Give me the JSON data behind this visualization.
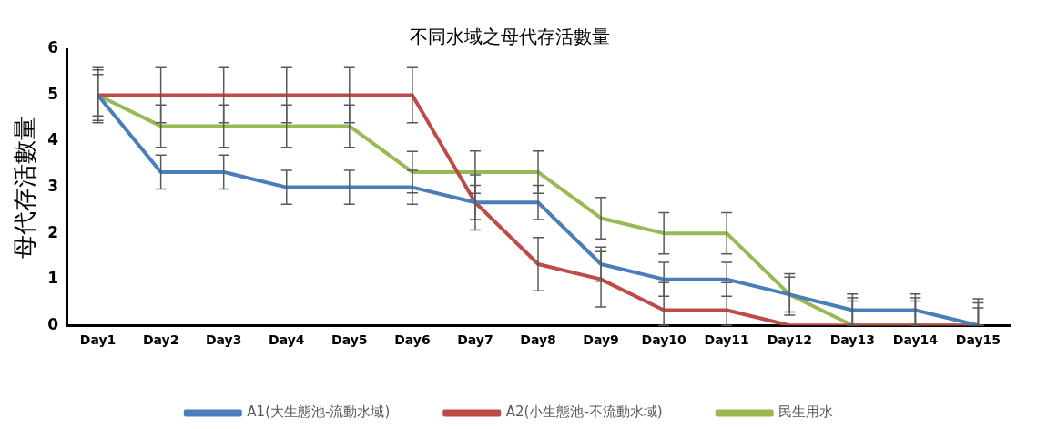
{
  "chart_data": {
    "type": "line",
    "title": "不同水域之母代存活數量",
    "ylabel": "母代存活數量",
    "categories": [
      "Day1",
      "Day2",
      "Day3",
      "Day4",
      "Day5",
      "Day6",
      "Day7",
      "Day8",
      "Day9",
      "Day10",
      "Day11",
      "Day12",
      "Day13",
      "Day14",
      "Day15"
    ],
    "series": [
      {
        "name": "A1(大生態池-流動水域)",
        "color": "#4a7ebb",
        "values": [
          5,
          3.33,
          3.33,
          3,
          3,
          3,
          2.67,
          2.67,
          1.33,
          1,
          1,
          0.67,
          0.33,
          0.33,
          0
        ],
        "errors": [
          0.45,
          0.37,
          0.37,
          0.37,
          0.37,
          0.37,
          0.37,
          0.37,
          0.37,
          0.37,
          0.37,
          0.45,
          [
            0,
            0.68
          ],
          [
            0,
            0.68
          ],
          [
            0,
            0.58
          ]
        ]
      },
      {
        "name": "A2(小生態池-不流動水域)",
        "color": "#be4b48",
        "values": [
          5,
          5,
          5,
          5,
          5,
          5,
          2.67,
          1.33,
          1,
          0.33,
          0.33,
          0,
          0,
          0,
          0
        ],
        "errors": [
          0.6,
          0.6,
          0.6,
          0.6,
          0.6,
          0.6,
          0.6,
          0.58,
          0.6,
          [
            0,
            0.93
          ],
          [
            0,
            0.93
          ],
          null,
          [
            0,
            0.6
          ],
          [
            0,
            0.6
          ],
          [
            0,
            0.49
          ]
        ]
      },
      {
        "name": "民生用水",
        "color": "#98b954",
        "values": [
          5,
          4.33,
          4.33,
          4.33,
          4.33,
          3.33,
          3.33,
          3.33,
          2.33,
          2,
          2,
          0.67,
          0,
          0,
          0
        ],
        "errors": [
          0.55,
          0.46,
          0.46,
          0.46,
          0.46,
          0.45,
          0.46,
          0.46,
          0.45,
          0.45,
          0.45,
          0.38,
          [
            0,
            0.53
          ],
          [
            0,
            0.53
          ],
          [
            0,
            0.38
          ]
        ]
      }
    ],
    "ylim": [
      0,
      6
    ],
    "yticks": [
      0,
      1,
      2,
      3,
      4,
      5,
      6
    ],
    "grid": false,
    "legend": "bottom",
    "marker": "none",
    "line_style": "solid"
  }
}
